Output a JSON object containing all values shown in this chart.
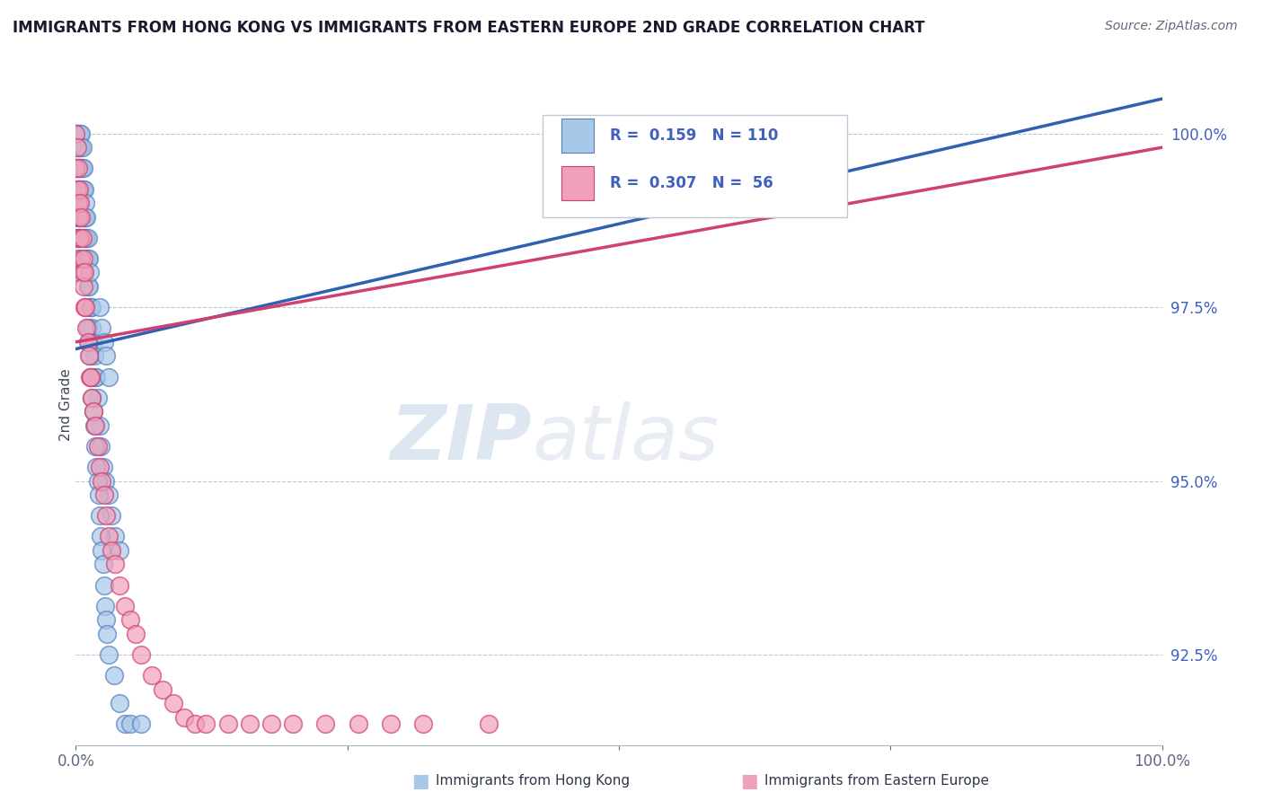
{
  "title": "IMMIGRANTS FROM HONG KONG VS IMMIGRANTS FROM EASTERN EUROPE 2ND GRADE CORRELATION CHART",
  "source": "Source: ZipAtlas.com",
  "ylabel": "2nd Grade",
  "legend_blue_r": "0.159",
  "legend_blue_n": "110",
  "legend_pink_r": "0.307",
  "legend_pink_n": "56",
  "legend_label_blue": "Immigrants from Hong Kong",
  "legend_label_pink": "Immigrants from Eastern Europe",
  "blue_color": "#a8c8e8",
  "pink_color": "#f0a0b8",
  "blue_edge_color": "#5580c0",
  "pink_edge_color": "#d04070",
  "blue_line_color": "#3060b0",
  "pink_line_color": "#d04070",
  "text_color": "#4060c0",
  "watermark_color": "#ccdded",
  "xlim": [
    0.0,
    1.0
  ],
  "ylim": [
    91.2,
    101.0
  ],
  "yticks": [
    92.5,
    95.0,
    97.5,
    100.0
  ],
  "blue_line_x0": 0.0,
  "blue_line_y0": 96.9,
  "blue_line_x1": 1.0,
  "blue_line_y1": 100.5,
  "pink_line_x0": 0.0,
  "pink_line_y0": 97.0,
  "pink_line_x1": 1.0,
  "pink_line_y1": 99.8,
  "blue_x": [
    0.0,
    0.0,
    0.0,
    0.0,
    0.0,
    0.0,
    0.0,
    0.0,
    0.0,
    0.0,
    0.001,
    0.001,
    0.001,
    0.001,
    0.001,
    0.001,
    0.001,
    0.001,
    0.002,
    0.002,
    0.002,
    0.002,
    0.002,
    0.002,
    0.002,
    0.003,
    0.003,
    0.003,
    0.003,
    0.003,
    0.003,
    0.004,
    0.004,
    0.004,
    0.004,
    0.004,
    0.005,
    0.005,
    0.005,
    0.005,
    0.005,
    0.006,
    0.006,
    0.006,
    0.006,
    0.007,
    0.007,
    0.007,
    0.007,
    0.008,
    0.008,
    0.008,
    0.009,
    0.009,
    0.009,
    0.01,
    0.01,
    0.01,
    0.011,
    0.011,
    0.011,
    0.012,
    0.012,
    0.013,
    0.013,
    0.014,
    0.015,
    0.015,
    0.016,
    0.017,
    0.018,
    0.019,
    0.02,
    0.022,
    0.023,
    0.025,
    0.027,
    0.03,
    0.033,
    0.036,
    0.04,
    0.011,
    0.012,
    0.013,
    0.014,
    0.015,
    0.016,
    0.017,
    0.018,
    0.019,
    0.02,
    0.021,
    0.022,
    0.023,
    0.024,
    0.025,
    0.026,
    0.027,
    0.028,
    0.029,
    0.03,
    0.035,
    0.04,
    0.045,
    0.05,
    0.06,
    0.022,
    0.024,
    0.026,
    0.028,
    0.03
  ],
  "blue_y": [
    100.0,
    100.0,
    99.8,
    99.8,
    99.5,
    99.5,
    99.2,
    99.0,
    98.8,
    98.5,
    100.0,
    99.8,
    99.5,
    99.2,
    99.0,
    98.8,
    98.5,
    98.2,
    100.0,
    99.8,
    99.5,
    99.2,
    99.0,
    98.5,
    98.0,
    100.0,
    99.8,
    99.5,
    99.2,
    99.0,
    98.5,
    100.0,
    99.8,
    99.5,
    99.2,
    98.8,
    100.0,
    99.8,
    99.5,
    99.2,
    98.8,
    99.8,
    99.5,
    99.2,
    98.8,
    99.5,
    99.2,
    98.8,
    98.5,
    99.2,
    98.8,
    98.5,
    99.0,
    98.8,
    98.5,
    98.8,
    98.5,
    98.2,
    98.5,
    98.2,
    97.8,
    98.2,
    97.8,
    98.0,
    97.5,
    97.5,
    97.5,
    97.2,
    97.0,
    96.8,
    96.5,
    96.5,
    96.2,
    95.8,
    95.5,
    95.2,
    95.0,
    94.8,
    94.5,
    94.2,
    94.0,
    97.2,
    97.0,
    96.8,
    96.5,
    96.2,
    96.0,
    95.8,
    95.5,
    95.2,
    95.0,
    94.8,
    94.5,
    94.2,
    94.0,
    93.8,
    93.5,
    93.2,
    93.0,
    92.8,
    92.5,
    92.2,
    91.8,
    91.5,
    91.5,
    91.5,
    97.5,
    97.2,
    97.0,
    96.8,
    96.5
  ],
  "pink_x": [
    0.0,
    0.0,
    0.001,
    0.001,
    0.002,
    0.002,
    0.003,
    0.003,
    0.003,
    0.004,
    0.004,
    0.005,
    0.005,
    0.006,
    0.006,
    0.007,
    0.007,
    0.008,
    0.008,
    0.009,
    0.01,
    0.011,
    0.012,
    0.013,
    0.014,
    0.015,
    0.016,
    0.018,
    0.02,
    0.022,
    0.024,
    0.026,
    0.028,
    0.03,
    0.033,
    0.036,
    0.04,
    0.045,
    0.05,
    0.055,
    0.06,
    0.07,
    0.08,
    0.09,
    0.1,
    0.11,
    0.12,
    0.14,
    0.16,
    0.18,
    0.2,
    0.23,
    0.26,
    0.29,
    0.32,
    0.38
  ],
  "pink_y": [
    100.0,
    99.5,
    99.8,
    99.2,
    99.5,
    99.0,
    99.2,
    98.8,
    98.5,
    99.0,
    98.5,
    98.8,
    98.2,
    98.5,
    98.0,
    98.2,
    97.8,
    98.0,
    97.5,
    97.5,
    97.2,
    97.0,
    96.8,
    96.5,
    96.5,
    96.2,
    96.0,
    95.8,
    95.5,
    95.2,
    95.0,
    94.8,
    94.5,
    94.2,
    94.0,
    93.8,
    93.5,
    93.2,
    93.0,
    92.8,
    92.5,
    92.2,
    92.0,
    91.8,
    91.6,
    91.5,
    91.5,
    91.5,
    91.5,
    91.5,
    91.5,
    91.5,
    91.5,
    91.5,
    91.5,
    91.5
  ]
}
